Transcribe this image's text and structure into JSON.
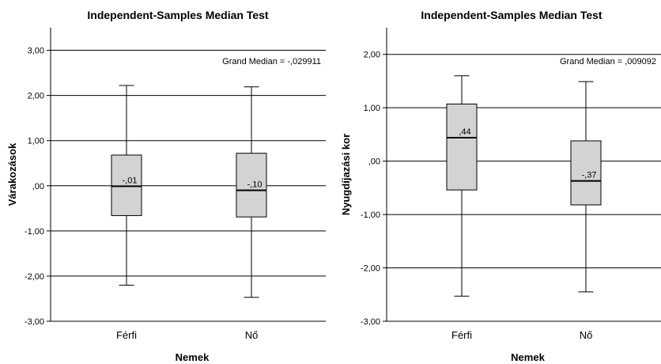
{
  "chart_data": [
    {
      "type": "boxplot",
      "title": "Independent-Samples Median Test",
      "xlabel": "Nemek",
      "ylabel": "Várakozások",
      "ylim": [
        -3,
        3.5
      ],
      "yticks": [
        "-3,00",
        "-2,00",
        "-1,00",
        ",00",
        "1,00",
        "2,00",
        "3,00"
      ],
      "ytick_values": [
        -3,
        -2,
        -1,
        0,
        1,
        2,
        3
      ],
      "gridlines": true,
      "grand_median_label": "Grand Median = -,029911",
      "grand_median": -0.029911,
      "categories": [
        "Férfi",
        "Nő"
      ],
      "boxes": [
        {
          "category": "Férfi",
          "min": -2.2,
          "q1": -0.66,
          "median": -0.01,
          "q3": 0.68,
          "max": 2.22,
          "median_label": "-,01"
        },
        {
          "category": "Nő",
          "min": -2.47,
          "q1": -0.69,
          "median": -0.1,
          "q3": 0.72,
          "max": 2.19,
          "median_label": "-,10"
        }
      ]
    },
    {
      "type": "boxplot",
      "title": "Independent-Samples Median Test",
      "xlabel": "Nemek",
      "ylabel": "Nyugdíjazási kor",
      "ylim": [
        -3,
        2.5
      ],
      "yticks": [
        "-3,00",
        "-2,00",
        "-1,00",
        ",00",
        "1,00",
        "2,00"
      ],
      "ytick_values": [
        -3,
        -2,
        -1,
        0,
        1,
        2
      ],
      "gridlines": true,
      "grand_median_label": "Grand Median = ,009092",
      "grand_median": 0.009092,
      "categories": [
        "Férfi",
        "Nő"
      ],
      "boxes": [
        {
          "category": "Férfi",
          "min": -2.53,
          "q1": -0.54,
          "median": 0.44,
          "q3": 1.07,
          "max": 1.6,
          "median_label": ",44"
        },
        {
          "category": "Nő",
          "min": -2.45,
          "q1": -0.82,
          "median": -0.37,
          "q3": 0.38,
          "max": 1.49,
          "median_label": "-,37"
        }
      ]
    }
  ]
}
